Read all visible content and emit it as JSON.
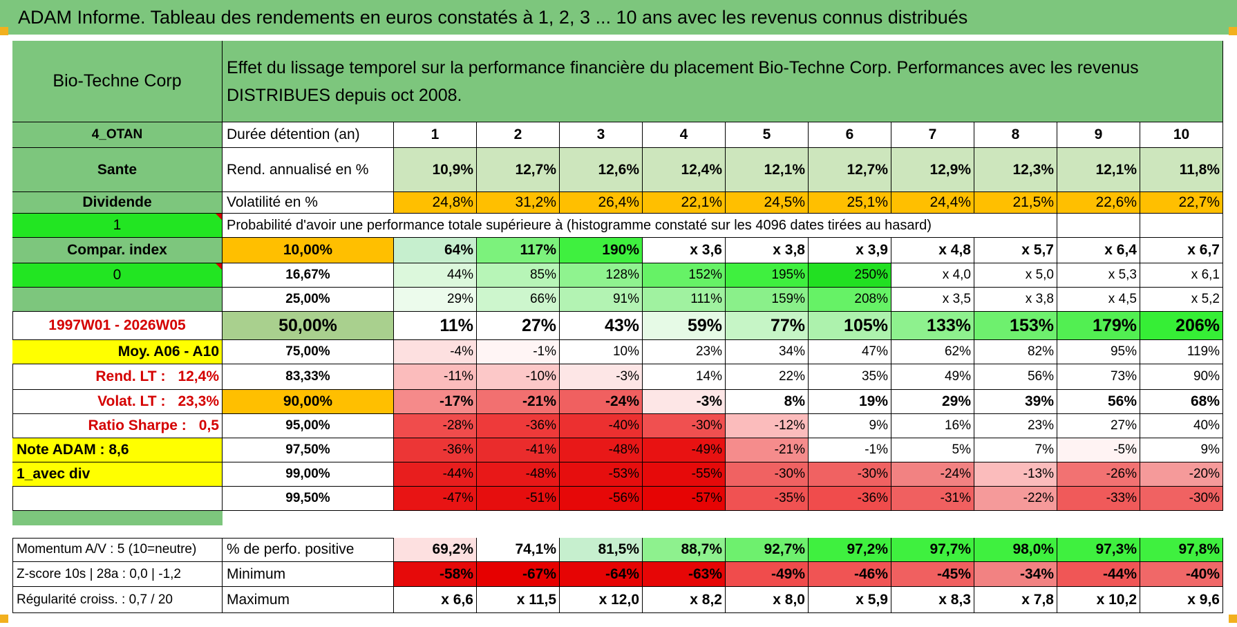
{
  "header": {
    "title": "ADAM Informe. Tableau des rendements en euros constatés à 1, 2, 3 ... 10 ans avec les revenus connus distribués"
  },
  "colors": {
    "green_header": "#7dc67d",
    "orange": "#ffbf00",
    "yellow": "#ffff00",
    "bright_green": "#22e522",
    "olive": "#a9d08e",
    "red_text": "#d40000"
  },
  "left": {
    "company": "Bio-Techne Corp",
    "code": "4_OTAN",
    "sector": "Sante",
    "dividend": "Dividende",
    "one": "1",
    "compar_index": "Compar. index",
    "zero": "0",
    "period": "1997W01 - 2026W05",
    "moy": "Moy. A06 - A10",
    "rend_lt": {
      "label": "Rend. LT :",
      "value": "12,4%"
    },
    "volat_lt": {
      "label": "Volat. LT :",
      "value": "23,3%"
    },
    "sharpe": {
      "label": "Ratio Sharpe :",
      "value": "0,5"
    },
    "note": "Note ADAM : 8,6",
    "avec_div": "1_avec div",
    "momentum": "Momentum A/V : 5 (10=neutre)",
    "zscore": "Z-score 10s | 28a : 0,0 | -1,2",
    "regularite": "Régularité croiss. : 0,7 / 20"
  },
  "main": {
    "title": "Effet du lissage temporel sur la performance financière du placement Bio-Techne Corp. Performances avec les revenus DISTRIBUES depuis oct 2008.",
    "duree_label": "Durée détention (an)",
    "years": [
      "1",
      "2",
      "3",
      "4",
      "5",
      "6",
      "7",
      "8",
      "9",
      "10"
    ],
    "rend_label": "Rend. annualisé en %",
    "rend_values": [
      "10,9%",
      "12,7%",
      "12,6%",
      "12,4%",
      "12,1%",
      "12,7%",
      "12,9%",
      "12,3%",
      "12,1%",
      "11,8%"
    ],
    "vol_label": "Volatilité en %",
    "vol_values": [
      "24,8%",
      "31,2%",
      "26,4%",
      "22,1%",
      "24,5%",
      "25,1%",
      "24,4%",
      "21,5%",
      "22,6%",
      "22,7%"
    ],
    "prob_label": "Probabilité d'avoir une performance totale supérieure à (histogramme constaté sur les 4096 dates tirées au hasard)"
  },
  "quantiles": [
    {
      "threshold": "10,00%",
      "values": [
        "64%",
        "117%",
        "190%",
        "x 3,6",
        "x 3,8",
        "x 3,9",
        "x 4,8",
        "x 5,7",
        "x 6,4",
        "x 6,7"
      ]
    },
    {
      "threshold": "16,67%",
      "values": [
        "44%",
        "85%",
        "128%",
        "152%",
        "195%",
        "250%",
        "x 4,0",
        "x 5,0",
        "x 5,3",
        "x 6,1"
      ]
    },
    {
      "threshold": "25,00%",
      "values": [
        "29%",
        "66%",
        "91%",
        "111%",
        "159%",
        "208%",
        "x 3,5",
        "x 3,8",
        "x 4,5",
        "x 5,2"
      ]
    },
    {
      "threshold": "50,00%",
      "values": [
        "11%",
        "27%",
        "43%",
        "59%",
        "77%",
        "105%",
        "133%",
        "153%",
        "179%",
        "206%"
      ]
    },
    {
      "threshold": "75,00%",
      "values": [
        "-4%",
        "-1%",
        "10%",
        "23%",
        "34%",
        "47%",
        "62%",
        "82%",
        "95%",
        "119%"
      ]
    },
    {
      "threshold": "83,33%",
      "values": [
        "-11%",
        "-10%",
        "-3%",
        "14%",
        "22%",
        "35%",
        "49%",
        "56%",
        "73%",
        "90%"
      ]
    },
    {
      "threshold": "90,00%",
      "values": [
        "-17%",
        "-21%",
        "-24%",
        "-3%",
        "8%",
        "19%",
        "29%",
        "39%",
        "56%",
        "68%"
      ]
    },
    {
      "threshold": "95,00%",
      "values": [
        "-28%",
        "-36%",
        "-40%",
        "-30%",
        "-12%",
        "9%",
        "16%",
        "23%",
        "27%",
        "40%"
      ]
    },
    {
      "threshold": "97,50%",
      "values": [
        "-36%",
        "-41%",
        "-48%",
        "-49%",
        "-21%",
        "-1%",
        "5%",
        "7%",
        "-5%",
        "9%"
      ]
    },
    {
      "threshold": "99,00%",
      "values": [
        "-44%",
        "-48%",
        "-53%",
        "-55%",
        "-30%",
        "-30%",
        "-24%",
        "-13%",
        "-26%",
        "-20%"
      ]
    },
    {
      "threshold": "99,50%",
      "values": [
        "-47%",
        "-51%",
        "-56%",
        "-57%",
        "-35%",
        "-36%",
        "-31%",
        "-22%",
        "-33%",
        "-30%"
      ]
    }
  ],
  "summary": {
    "pos_label": "% de perfo. positive",
    "pos_values": [
      "69,2%",
      "74,1%",
      "81,5%",
      "88,7%",
      "92,7%",
      "97,2%",
      "97,7%",
      "98,0%",
      "97,3%",
      "97,8%"
    ],
    "min_label": "Minimum",
    "min_values": [
      "-58%",
      "-67%",
      "-64%",
      "-63%",
      "-49%",
      "-46%",
      "-45%",
      "-34%",
      "-44%",
      "-40%"
    ],
    "max_label": "Maximum",
    "max_values": [
      "x 6,6",
      "x 11,5",
      "x 12,0",
      "x 8,2",
      "x 8,0",
      "x 5,9",
      "x 8,3",
      "x 7,8",
      "x 10,2",
      "x 9,6"
    ]
  }
}
